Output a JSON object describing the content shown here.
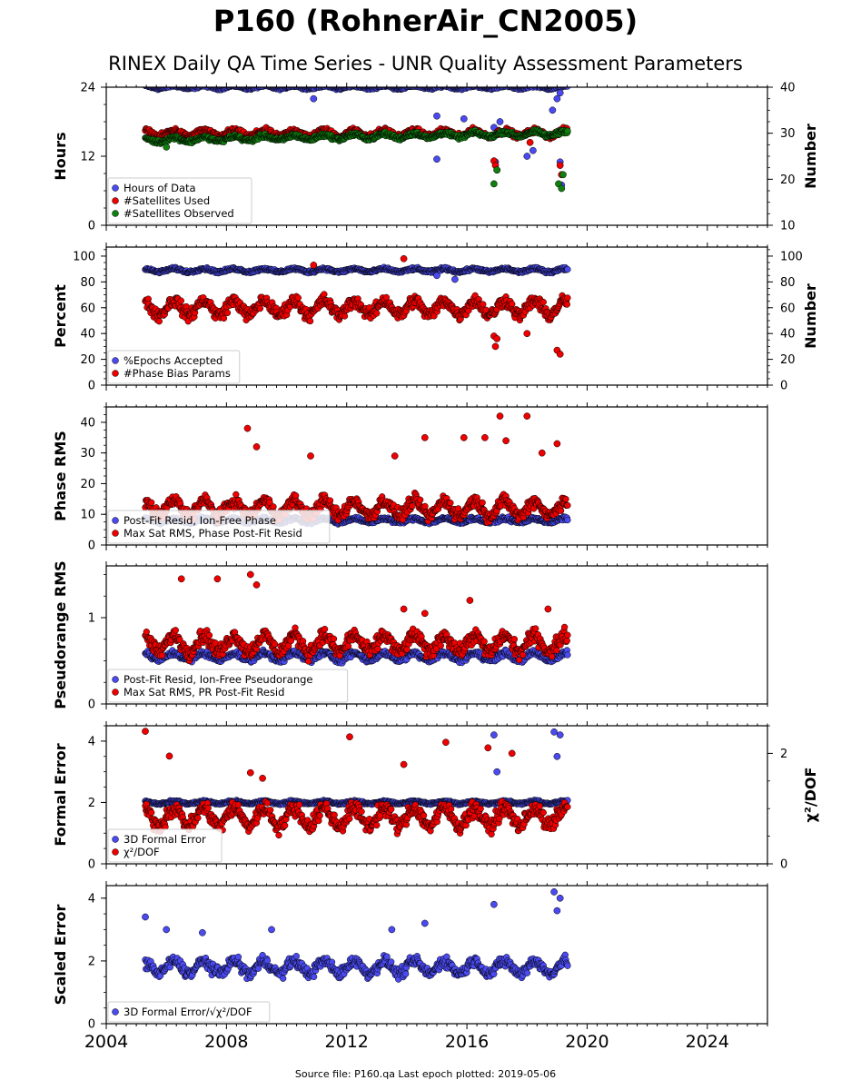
{
  "title": "P160 (RohnerAir_CN2005)",
  "subtitle": "RINEX Daily QA Time Series - UNR Quality Assessment Parameters",
  "footer": "Source file: P160.qa Last epoch plotted: 2019-05-06",
  "colors": {
    "blue": "#4a4af0",
    "red": "#ee0000",
    "green": "#108010",
    "edge": "#000000"
  },
  "chart_data": {
    "type": "scatter",
    "x_axis": {
      "range": [
        2004,
        2026
      ],
      "ticks": [
        2004,
        2008,
        2012,
        2016,
        2020,
        2024
      ],
      "tick_labels": [
        "2004",
        "2008",
        "2012",
        "2016",
        "2020",
        "2024"
      ]
    },
    "data_span": [
      2005.3,
      2019.35
    ],
    "panels": [
      {
        "ylabel": "Hours",
        "ylim": [
          0,
          24
        ],
        "yticks": [
          0,
          12,
          24
        ],
        "y2label": "Number",
        "y2lim": [
          10,
          40
        ],
        "y2ticks": [
          10,
          20,
          30,
          40
        ],
        "legend": "bottom-left",
        "series": [
          {
            "name": "Hours of Data",
            "color": "blue",
            "axis": "left",
            "level": 24,
            "spread": 0.3,
            "outliers": [
              [
                2010.9,
                22
              ],
              [
                2015.0,
                19
              ],
              [
                2015.0,
                11.5
              ],
              [
                2015.9,
                18.5
              ],
              [
                2016.9,
                17
              ],
              [
                2016.95,
                11
              ],
              [
                2017.1,
                18
              ],
              [
                2018.0,
                12
              ],
              [
                2018.2,
                13
              ],
              [
                2018.85,
                20
              ],
              [
                2019.0,
                22
              ],
              [
                2019.1,
                23
              ],
              [
                2019.15,
                7
              ],
              [
                2019.1,
                11
              ]
            ]
          },
          {
            "name": "#Satellites Used",
            "color": "red",
            "axis": "right",
            "level": 30,
            "spread": 0.8,
            "outliers": [
              [
                2016.9,
                24
              ],
              [
                2016.95,
                23
              ],
              [
                2017.0,
                22
              ],
              [
                2018.1,
                28
              ],
              [
                2019.1,
                23
              ],
              [
                2019.15,
                21
              ]
            ]
          },
          {
            "name": "#Satellites Observed",
            "color": "green",
            "axis": "right",
            "level_start": 28.5,
            "level_end": 30,
            "spread": 0.6,
            "outliers": [
              [
                2016.9,
                19
              ],
              [
                2017.0,
                22
              ],
              [
                2019.05,
                19
              ],
              [
                2019.15,
                18
              ],
              [
                2019.2,
                21
              ],
              [
                2006.0,
                27
              ]
            ]
          }
        ]
      },
      {
        "ylabel": "Percent",
        "ylim": [
          0,
          107
        ],
        "yticks": [
          0,
          20,
          40,
          60,
          80,
          100
        ],
        "y2label": "Number",
        "y2lim": [
          0,
          107
        ],
        "y2ticks": [
          0,
          20,
          40,
          60,
          80,
          100
        ],
        "legend": "bottom-left",
        "series": [
          {
            "name": "%Epochs Accepted",
            "color": "blue",
            "axis": "left",
            "level": 89,
            "spread": 1.5,
            "outliers": [
              [
                2015.0,
                85
              ],
              [
                2015.6,
                82
              ]
            ]
          },
          {
            "name": "#Phase Bias Params",
            "color": "red",
            "axis": "left",
            "level": 60,
            "spread": 7,
            "outliers": [
              [
                2010.9,
                93
              ],
              [
                2013.9,
                98
              ],
              [
                2016.9,
                38
              ],
              [
                2016.95,
                30
              ],
              [
                2017.0,
                36
              ],
              [
                2019.0,
                27
              ],
              [
                2019.1,
                24
              ],
              [
                2018.0,
                40
              ]
            ]
          }
        ]
      },
      {
        "ylabel": "Phase RMS",
        "ylim": [
          0,
          45
        ],
        "yticks": [
          0,
          10,
          20,
          30,
          40
        ],
        "legend": "bottom-left",
        "series": [
          {
            "name": "Post-Fit Resid, Ion-Free Phase",
            "color": "blue",
            "axis": "left",
            "level": 8,
            "spread": 0.8,
            "outliers": []
          },
          {
            "name": "Max Sat RMS, Phase Post-Fit Resid",
            "color": "red",
            "axis": "left",
            "level": 12,
            "spread": 3,
            "outliers": [
              [
                2008.7,
                38
              ],
              [
                2009.0,
                32
              ],
              [
                2010.8,
                29
              ],
              [
                2013.6,
                29
              ],
              [
                2014.6,
                35
              ],
              [
                2015.9,
                35
              ],
              [
                2016.6,
                35
              ],
              [
                2017.1,
                42
              ],
              [
                2017.3,
                34
              ],
              [
                2018.0,
                42
              ],
              [
                2018.5,
                30
              ],
              [
                2019.0,
                33
              ]
            ]
          }
        ]
      },
      {
        "ylabel": "Pseudorange RMS",
        "ylim": [
          0,
          1.6
        ],
        "yticks": [
          0,
          1
        ],
        "legend": "bottom-left",
        "series": [
          {
            "name": "Post-Fit Resid, Ion-Free Pseudorange",
            "color": "blue",
            "axis": "left",
            "level": 0.55,
            "spread": 0.05,
            "outliers": []
          },
          {
            "name": "Max Sat RMS, PR Post-Fit Resid",
            "color": "red",
            "axis": "left",
            "level": 0.7,
            "spread": 0.12,
            "outliers": [
              [
                2006.5,
                1.45
              ],
              [
                2007.7,
                1.45
              ],
              [
                2008.8,
                1.5
              ],
              [
                2009.0,
                1.38
              ],
              [
                2013.9,
                1.1
              ],
              [
                2014.6,
                1.05
              ],
              [
                2016.1,
                1.2
              ],
              [
                2018.7,
                1.1
              ]
            ]
          }
        ]
      },
      {
        "ylabel": "Formal Error",
        "ylim": [
          0,
          4.5
        ],
        "yticks": [
          0,
          2,
          4
        ],
        "y2label": "χ²/DOF",
        "y2lim": [
          0,
          2.5
        ],
        "y2ticks": [
          0,
          2
        ],
        "legend": "bottom-left",
        "series": [
          {
            "name": "3D Formal Error",
            "color": "blue",
            "axis": "left",
            "level": 2.0,
            "spread": 0.05,
            "outliers": [
              [
                2016.9,
                4.2
              ],
              [
                2017.0,
                3.0
              ],
              [
                2018.9,
                4.3
              ],
              [
                2019.0,
                3.5
              ],
              [
                2019.1,
                4.2
              ]
            ]
          },
          {
            "name": "χ²/DOF",
            "color": "red",
            "axis": "right",
            "level": 0.85,
            "spread": 0.2,
            "outliers": [
              [
                2005.3,
                2.4
              ],
              [
                2006.1,
                1.95
              ],
              [
                2008.8,
                1.65
              ],
              [
                2009.2,
                1.55
              ],
              [
                2012.1,
                2.3
              ],
              [
                2013.9,
                1.8
              ],
              [
                2015.3,
                2.2
              ],
              [
                2016.7,
                2.1
              ],
              [
                2017.5,
                2.0
              ]
            ]
          }
        ]
      },
      {
        "ylabel": "Scaled Error",
        "ylim": [
          0,
          4.4
        ],
        "yticks": [
          0,
          2,
          4
        ],
        "legend": "bottom-left",
        "series": [
          {
            "name": "3D Formal Error/√χ²/DOF",
            "color": "blue",
            "axis": "left",
            "level": 1.8,
            "spread": 0.25,
            "outliers": [
              [
                2005.3,
                3.4
              ],
              [
                2006.0,
                3.0
              ],
              [
                2007.2,
                2.9
              ],
              [
                2009.5,
                3.0
              ],
              [
                2013.5,
                3.0
              ],
              [
                2014.6,
                3.2
              ],
              [
                2016.9,
                3.8
              ],
              [
                2018.9,
                4.2
              ],
              [
                2019.0,
                3.6
              ],
              [
                2019.1,
                4.0
              ]
            ]
          }
        ]
      }
    ]
  }
}
